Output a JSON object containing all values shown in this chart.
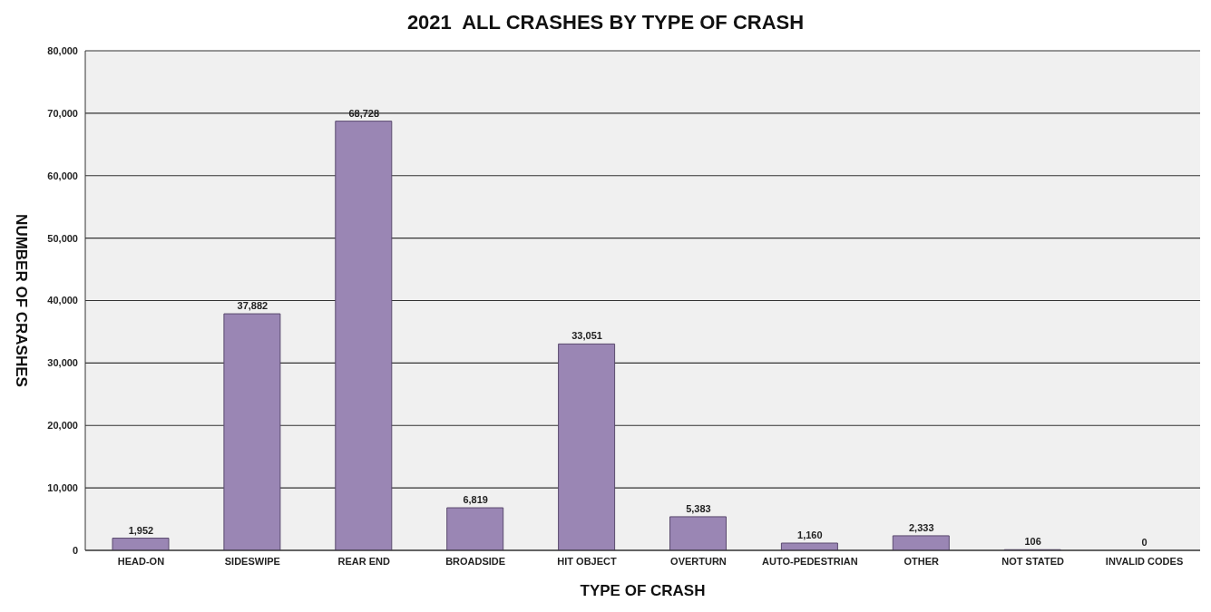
{
  "chart_data": {
    "type": "bar",
    "title": "2021  ALL CRASHES BY TYPE OF CRASH",
    "xlabel": "TYPE OF CRASH",
    "ylabel": "NUMBER OF CRASHES",
    "categories": [
      "HEAD-ON",
      "SIDESWIPE",
      "REAR END",
      "BROADSIDE",
      "HIT OBJECT",
      "OVERTURN",
      "AUTO-PEDESTRIAN",
      "OTHER",
      "NOT STATED",
      "INVALID CODES"
    ],
    "values": [
      1952,
      37882,
      68728,
      6819,
      33051,
      5383,
      1160,
      2333,
      106,
      0
    ],
    "color": "#9a86b4",
    "ylim": [
      0,
      80000
    ],
    "yticks": [
      {
        "value": 0,
        "label": "0"
      },
      {
        "value": 10000,
        "label": "10,000"
      },
      {
        "value": 20000,
        "label": "20,000"
      },
      {
        "value": 30000,
        "label": "30,000"
      },
      {
        "value": 40000,
        "label": "40,000"
      },
      {
        "value": 50000,
        "label": "50,000"
      },
      {
        "value": 60000,
        "label": "60,000"
      },
      {
        "value": 70000,
        "label": "70,000"
      },
      {
        "value": 80000,
        "label": "80,000"
      }
    ],
    "value_labels": [
      "1,952",
      "37,882",
      "68,728",
      "6,819",
      "33,051",
      "5,383",
      "1,160",
      "2,333",
      "106",
      "0"
    ],
    "grid": "y"
  }
}
